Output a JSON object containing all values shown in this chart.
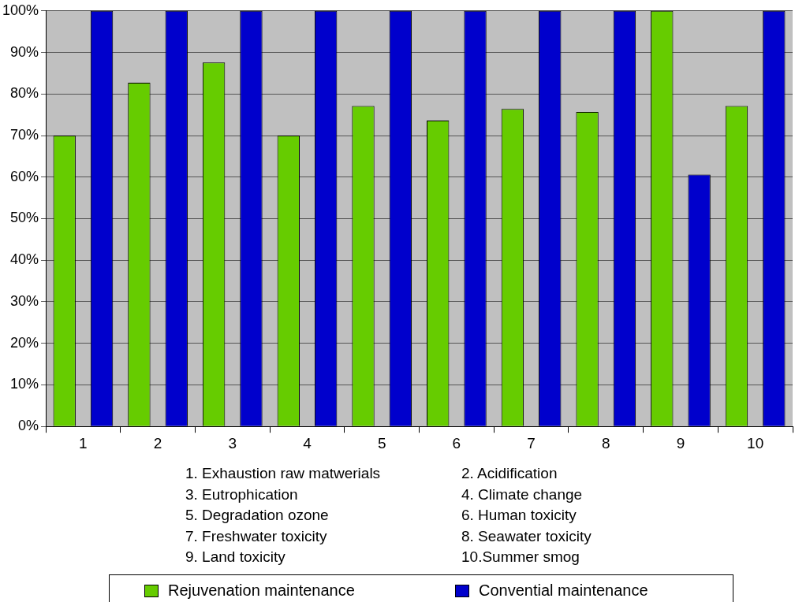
{
  "chart_data": {
    "type": "bar",
    "categories": [
      "1",
      "2",
      "3",
      "4",
      "5",
      "6",
      "7",
      "8",
      "9",
      "10"
    ],
    "series": [
      {
        "name": "Rejuvenation maintenance",
        "color": "#66cc00",
        "values": [
          70,
          82.7,
          87.6,
          70,
          77.1,
          73.6,
          76.4,
          75.7,
          100,
          77.1
        ]
      },
      {
        "name": "Convential maintenance",
        "color": "#0000cc",
        "values": [
          100,
          100,
          100,
          100,
          100,
          100,
          100,
          100,
          60.6,
          100
        ]
      }
    ],
    "ylim": [
      0,
      100
    ],
    "yticks": [
      {
        "value": 0,
        "label": "0%"
      },
      {
        "value": 10,
        "label": "10%"
      },
      {
        "value": 20,
        "label": "20%"
      },
      {
        "value": 30,
        "label": "30%"
      },
      {
        "value": 40,
        "label": "40%"
      },
      {
        "value": 50,
        "label": "50%"
      },
      {
        "value": 60,
        "label": "60%"
      },
      {
        "value": 70,
        "label": "70%"
      },
      {
        "value": 80,
        "label": "80%"
      },
      {
        "value": 90,
        "label": "90%"
      },
      {
        "value": 100,
        "label": "100%"
      }
    ],
    "grid": "y",
    "legend": "bottom",
    "annotations": [
      "1.  Exhaustion raw matwerials",
      "2.  Acidification",
      "3.  Eutrophication",
      "4.  Climate change",
      "5.  Degradation ozone",
      "6.  Human toxicity",
      "7.  Freshwater toxicity",
      "8.  Seawater toxicity",
      "9.  Land toxicity",
      "10.Summer smog"
    ]
  }
}
